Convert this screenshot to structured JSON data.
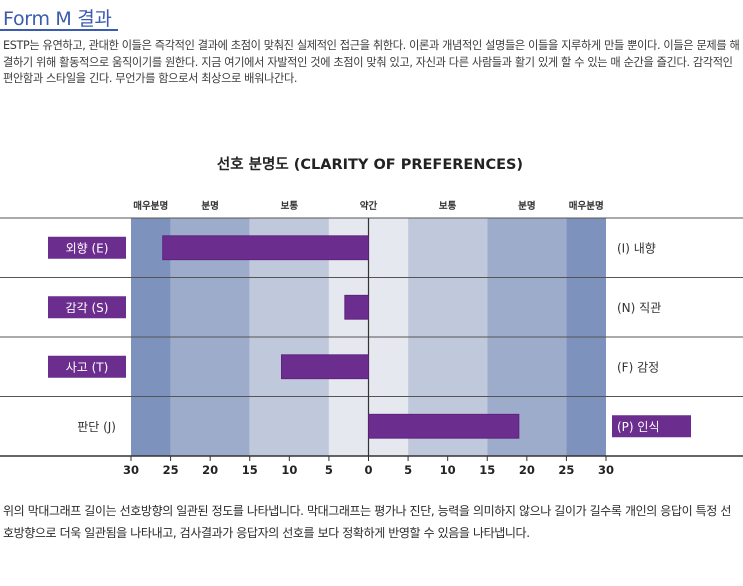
{
  "page": {
    "heading": "Form M 결과",
    "intro": "ESTP는 유연하고, 관대한 이들은 즉각적인 결과에 초점이 맞춰진 실제적인 접근을 취한다. 이론과 개념적인 설명들은 이들을 지루하게 만들 뿐이다. 이들은 문제를 해결하기 위해 활동적으로 움직이기를 원한다. 지금 여기에서 자발적인 것에 초점이 맞춰 있고, 자신과 다른 사람들과 활기 있게 할 수 있는 매 순간을 즐긴다. 감각적인 편안함과 스타일을 긴다. 무언가를 함으로서 최상으로 배워나간다.",
    "footnote": "위의 막대그래프 길이는 선호방향의 일관된 정도를 나타냅니다. 막대그래프는 평가나 진단, 능력을 의미하지 않으나 길이가 길수록 개인의 응답이 특정 선호방향으로 더욱 일관됨을 나타내고, 검사결과가 응답자의 선호를 보다 정확하게 반영할 수 있음을 나타냅니다."
  },
  "chart_data": {
    "type": "bar",
    "title": "선호 분명도 (CLARITY OF PREFERENCES)",
    "band_labels": [
      "매우분명",
      "분명",
      "보통",
      "약간",
      "보통",
      "분명",
      "매우분명"
    ],
    "x_ticks": [
      "30",
      "25",
      "20",
      "15",
      "10",
      "5",
      "0",
      "5",
      "10",
      "15",
      "20",
      "25",
      "30"
    ],
    "xlim": [
      -30,
      30
    ],
    "band_edges": [
      -30,
      -25,
      -15,
      -5,
      0,
      5,
      15,
      25,
      30
    ],
    "band_colors": [
      "#7d92bd",
      "#9eaccb",
      "#c0c9dc",
      "#e6e8ef",
      "#e6e8ef",
      "#c0c9dc",
      "#9eaccb",
      "#7d92bd"
    ],
    "bar_color": "#6b2d8e",
    "rows": [
      {
        "left": "외향 (E)",
        "right": "(I) 내향",
        "value": -26,
        "highlight": "left"
      },
      {
        "left": "감각 (S)",
        "right": "(N) 직관",
        "value": -3,
        "highlight": "left"
      },
      {
        "left": "사고 (T)",
        "right": "(F) 감정",
        "value": -11,
        "highlight": "left"
      },
      {
        "left": "판단 (J)",
        "right": "(P) 인식",
        "value": 19,
        "highlight": "right"
      }
    ]
  }
}
